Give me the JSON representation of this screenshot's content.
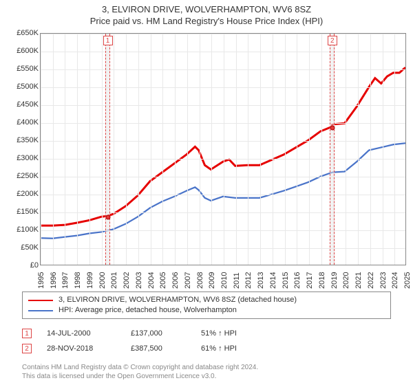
{
  "title": {
    "line1": "3, ELVIRON DRIVE, WOLVERHAMPTON, WV6 8SZ",
    "line2": "Price paid vs. HM Land Registry's House Price Index (HPI)"
  },
  "chart": {
    "type": "line",
    "background_color": "#ffffff",
    "grid_color": "#e8e8e8",
    "border_color": "#888888",
    "x_axis": {
      "min": 1995,
      "max": 2025,
      "ticks": [
        1995,
        1996,
        1997,
        1998,
        1999,
        2000,
        2001,
        2002,
        2003,
        2004,
        2005,
        2006,
        2007,
        2008,
        2009,
        2010,
        2011,
        2012,
        2013,
        2014,
        2015,
        2016,
        2017,
        2018,
        2019,
        2020,
        2021,
        2022,
        2023,
        2024,
        2025
      ],
      "label_fontsize": 11
    },
    "y_axis": {
      "min": 0,
      "max": 650000,
      "step": 50000,
      "tick_labels": [
        "£0",
        "£50K",
        "£100K",
        "£150K",
        "£200K",
        "£250K",
        "£300K",
        "£350K",
        "£400K",
        "£450K",
        "£500K",
        "£550K",
        "£600K",
        "£650K"
      ],
      "label_fontsize": 11
    },
    "series": [
      {
        "name": "3, ELVIRON DRIVE, WOLVERHAMPTON, WV6 8SZ (detached house)",
        "color": "#e60000",
        "line_width": 1.6,
        "points": [
          [
            1995,
            110000
          ],
          [
            1996,
            110000
          ],
          [
            1997,
            112000
          ],
          [
            1998,
            118000
          ],
          [
            1999,
            125000
          ],
          [
            2000,
            135000
          ],
          [
            2000.5,
            137000
          ],
          [
            2001,
            143000
          ],
          [
            2002,
            165000
          ],
          [
            2003,
            195000
          ],
          [
            2004,
            235000
          ],
          [
            2005,
            260000
          ],
          [
            2006,
            285000
          ],
          [
            2007,
            310000
          ],
          [
            2007.7,
            332000
          ],
          [
            2008,
            322000
          ],
          [
            2008.5,
            280000
          ],
          [
            2009,
            268000
          ],
          [
            2010,
            290000
          ],
          [
            2010.5,
            296000
          ],
          [
            2011,
            278000
          ],
          [
            2012,
            280000
          ],
          [
            2013,
            280000
          ],
          [
            2014,
            295000
          ],
          [
            2015,
            310000
          ],
          [
            2016,
            330000
          ],
          [
            2017,
            350000
          ],
          [
            2018,
            375000
          ],
          [
            2018.9,
            387500
          ],
          [
            2019,
            395000
          ],
          [
            2020,
            398000
          ],
          [
            2021,
            445000
          ],
          [
            2022,
            500000
          ],
          [
            2022.5,
            525000
          ],
          [
            2023,
            510000
          ],
          [
            2023.5,
            530000
          ],
          [
            2024,
            540000
          ],
          [
            2024.5,
            540000
          ],
          [
            2025,
            555000
          ]
        ]
      },
      {
        "name": "HPI: Average price, detached house, Wolverhampton",
        "color": "#4a74c9",
        "line_width": 1.2,
        "points": [
          [
            1995,
            75000
          ],
          [
            1996,
            74000
          ],
          [
            1997,
            78000
          ],
          [
            1998,
            82000
          ],
          [
            1999,
            88000
          ],
          [
            2000,
            92000
          ],
          [
            2001,
            100000
          ],
          [
            2002,
            115000
          ],
          [
            2003,
            135000
          ],
          [
            2004,
            160000
          ],
          [
            2005,
            178000
          ],
          [
            2006,
            192000
          ],
          [
            2007,
            208000
          ],
          [
            2007.7,
            218000
          ],
          [
            2008,
            210000
          ],
          [
            2008.5,
            188000
          ],
          [
            2009,
            180000
          ],
          [
            2010,
            192000
          ],
          [
            2011,
            188000
          ],
          [
            2012,
            188000
          ],
          [
            2013,
            188000
          ],
          [
            2014,
            198000
          ],
          [
            2015,
            208000
          ],
          [
            2016,
            220000
          ],
          [
            2017,
            232000
          ],
          [
            2018,
            248000
          ],
          [
            2019,
            260000
          ],
          [
            2020,
            262000
          ],
          [
            2021,
            290000
          ],
          [
            2022,
            322000
          ],
          [
            2023,
            330000
          ],
          [
            2024,
            338000
          ],
          [
            2025,
            342000
          ]
        ]
      }
    ],
    "highlights": [
      {
        "x": 2000.5,
        "label": "1",
        "band_width_years": 0.4
      },
      {
        "x": 2018.9,
        "label": "2",
        "band_width_years": 0.4
      }
    ],
    "markers": [
      {
        "x": 2000.5,
        "y": 137000
      },
      {
        "x": 2018.9,
        "y": 387500
      }
    ]
  },
  "legend": {
    "items": [
      {
        "color": "#e60000",
        "label": "3, ELVIRON DRIVE, WOLVERHAMPTON, WV6 8SZ (detached house)"
      },
      {
        "color": "#4a74c9",
        "label": "HPI: Average price, detached house, Wolverhampton"
      }
    ]
  },
  "events": [
    {
      "num": "1",
      "date": "14-JUL-2000",
      "price": "£137,000",
      "pct": "51% ↑ HPI"
    },
    {
      "num": "2",
      "date": "28-NOV-2018",
      "price": "£387,500",
      "pct": "61% ↑ HPI"
    }
  ],
  "credits": {
    "line1": "Contains HM Land Registry data © Crown copyright and database right 2024.",
    "line2": "This data is licensed under the Open Government Licence v3.0."
  }
}
